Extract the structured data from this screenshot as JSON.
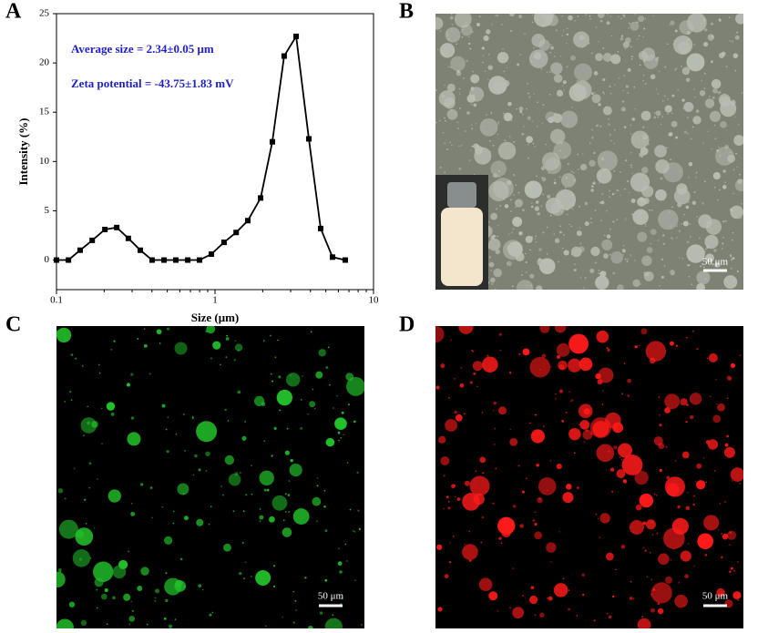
{
  "panel_labels": [
    "A",
    "B",
    "C",
    "D"
  ],
  "chart_data": {
    "type": "line",
    "x": [
      0.1,
      0.119,
      0.141,
      0.168,
      0.202,
      0.24,
      0.284,
      0.338,
      0.401,
      0.477,
      0.566,
      0.673,
      0.799,
      0.949,
      1.14,
      1.36,
      1.61,
      1.94,
      2.3,
      2.73,
      3.25,
      3.91,
      4.64,
      5.51,
      6.63
    ],
    "values": [
      0,
      0,
      1.0,
      2.0,
      3.1,
      3.3,
      2.2,
      1.0,
      0,
      0,
      0,
      0,
      0,
      0.6,
      1.8,
      2.8,
      4.0,
      6.3,
      12.0,
      20.7,
      22.7,
      12.3,
      3.2,
      0.3,
      0
    ],
    "color": "#000000",
    "xlabel": "Size (μm)",
    "ylabel": "Intensity (%)",
    "xlog": true,
    "xlim": [
      0.1,
      10
    ],
    "xticks": [
      0.1,
      1,
      10
    ],
    "ylim": [
      -3,
      25
    ],
    "yticks": [
      0,
      5,
      10,
      15,
      20,
      25
    ],
    "annotations": [
      "Average size = 2.34±0.05 μm",
      "Zeta potential = -43.75±1.83 mV"
    ],
    "annotation_color": "#1f1fc8"
  },
  "images": [
    {
      "scale_bar": "50 μm"
    },
    {
      "scale_bar": "50 μm"
    },
    {
      "scale_bar": "50 μm"
    }
  ]
}
